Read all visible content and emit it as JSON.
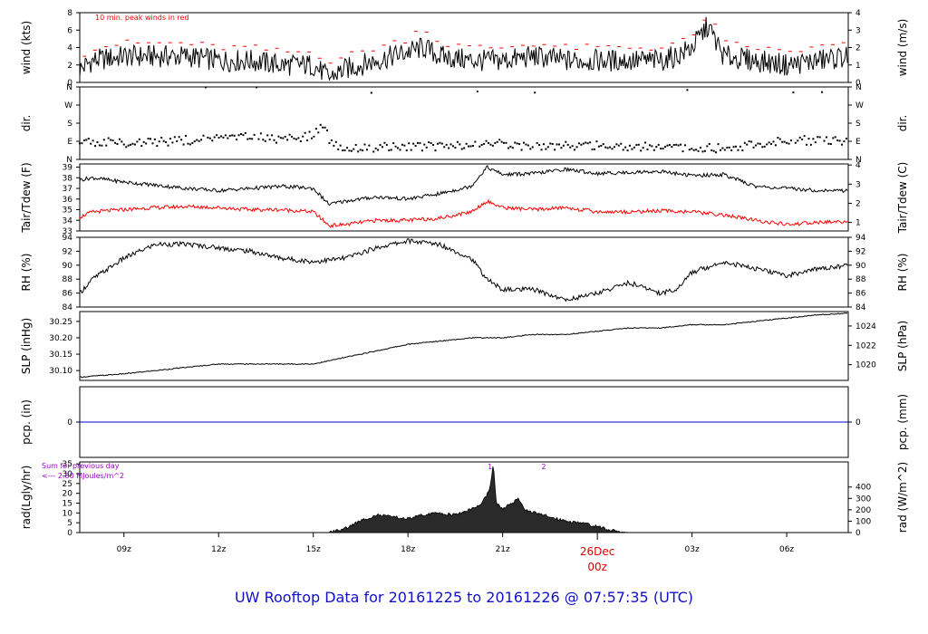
{
  "footer": {
    "title": "UW Rooftop Data for 20161225  to  20161226 @ 07:57:35  (UTC)"
  },
  "x_axis": {
    "ticks": [
      {
        "label": "09z",
        "hour": 9
      },
      {
        "label": "12z",
        "hour": 12
      },
      {
        "label": "15z",
        "hour": 15
      },
      {
        "label": "18z",
        "hour": 18
      },
      {
        "label": "21z",
        "hour": 21
      },
      {
        "label": "03z",
        "hour": 27
      },
      {
        "label": "06z",
        "hour": 30
      }
    ],
    "day_label": "26Dec",
    "day_sub": "00z",
    "day_hour": 24,
    "range_hours": [
      7.6,
      31.95
    ]
  },
  "panels": [
    {
      "id": "wind",
      "left_label": "wind (kts)",
      "right_label": "wind (m/s)",
      "left_ticks": [
        "0",
        "2",
        "4",
        "6",
        "8"
      ],
      "right_ticks": [
        "0",
        "1",
        "2",
        "3",
        "4"
      ],
      "note": "10 min. peak winds in red"
    },
    {
      "id": "dir",
      "left_label": "dir.",
      "right_label": "dir.",
      "left_ticks": [
        "N",
        "E",
        "S",
        "W",
        "N"
      ],
      "right_ticks": [
        "N",
        "E",
        "S",
        "W",
        "N"
      ]
    },
    {
      "id": "temp",
      "left_label": "Tair/Tdew (F)",
      "right_label": "Tair/Tdew (C)",
      "left_ticks": [
        "33",
        "34",
        "35",
        "36",
        "37",
        "38",
        "39"
      ],
      "right_ticks": [
        "1",
        "2",
        "3",
        "4"
      ]
    },
    {
      "id": "rh",
      "left_label": "RH (%)",
      "right_label": "RH (%)",
      "left_ticks": [
        "84",
        "86",
        "88",
        "90",
        "92",
        "94"
      ],
      "right_ticks": [
        "84",
        "86",
        "88",
        "90",
        "92",
        "94"
      ]
    },
    {
      "id": "slp",
      "left_label": "SLP (inHg)",
      "right_label": "SLP (hPa)",
      "left_ticks": [
        "30.10",
        "30.15",
        "30.20",
        "30.25"
      ],
      "right_ticks": [
        "1020",
        "1022",
        "1024"
      ]
    },
    {
      "id": "pcp",
      "left_label": "pcp. (in)",
      "right_label": "pcp. (mm)",
      "left_ticks": [
        "0"
      ],
      "right_ticks": [
        "0"
      ]
    },
    {
      "id": "rad",
      "left_label": "rad(Lgly/hr)",
      "right_label": "rad (W/m^2)",
      "left_ticks": [
        "0",
        "5",
        "10",
        "15",
        "20",
        "25",
        "30",
        "35"
      ],
      "right_ticks": [
        "0",
        "100",
        "200",
        "300",
        "400"
      ],
      "note1": "Sum for previous day",
      "note2": "<--- 2.80 MJoules/m^2",
      "markers": [
        "1",
        "2"
      ]
    }
  ],
  "colors": {
    "axis": "#000000",
    "series": "#000000",
    "peak": "#ff0000",
    "dewpoint": "#ff0000",
    "precip": "#0000cc",
    "note": "#9900cc",
    "day": "#dd0000"
  },
  "chart_data": [
    {
      "type": "line",
      "panel": "wind",
      "ylabel": "wind (kts)",
      "ylim": [
        0,
        8
      ],
      "x_hours": [
        7.6,
        8,
        9,
        10,
        11,
        12,
        13,
        14,
        15,
        15.5,
        16,
        17,
        18,
        18.5,
        19,
        20,
        21,
        22,
        23,
        24,
        25,
        26,
        26.5,
        27,
        27.5,
        28,
        29,
        30,
        31,
        31.95
      ],
      "series": [
        {
          "name": "wind",
          "values": [
            1.5,
            2.5,
            3,
            3,
            3,
            2.5,
            2.5,
            2,
            2,
            0.5,
            1.5,
            2.5,
            3.5,
            4,
            3,
            2.5,
            2.5,
            3,
            2.5,
            2.5,
            2.5,
            2.5,
            3,
            4,
            6.5,
            3,
            2.5,
            2,
            2.5,
            3
          ]
        },
        {
          "name": "10 min. peak winds",
          "values": [
            3,
            4,
            4.5,
            4.5,
            4.5,
            4,
            4,
            3.5,
            3.5,
            2.5,
            3,
            4,
            5,
            6.5,
            4.5,
            4,
            4,
            4.5,
            4,
            4,
            4,
            4,
            4.5,
            5,
            8,
            4.5,
            4,
            3.5,
            4,
            4.5
          ]
        }
      ]
    },
    {
      "type": "scatter",
      "panel": "dir",
      "ylabel": "dir.",
      "categories_y": [
        "N",
        "E",
        "S",
        "W",
        "N"
      ],
      "x_hours": [
        7.6,
        9,
        11,
        13,
        14,
        15,
        15.3,
        15.6,
        16,
        18,
        20,
        21,
        22,
        24,
        26,
        28,
        30,
        31.95
      ],
      "series": [
        {
          "name": "direction (deg)",
          "values": [
            90,
            80,
            95,
            110,
            100,
            120,
            175,
            70,
            60,
            60,
            70,
            80,
            60,
            70,
            60,
            55,
            95,
            95
          ]
        }
      ]
    },
    {
      "type": "line",
      "panel": "temp",
      "ylabel": "Tair/Tdew (F)",
      "ylim": [
        33,
        39.3
      ],
      "x_hours": [
        7.6,
        8,
        9,
        10,
        11,
        12,
        13,
        14,
        15,
        15.5,
        16,
        17,
        18,
        19,
        20,
        20.5,
        21,
        22,
        23,
        24,
        25,
        26,
        27,
        28,
        29,
        30,
        31,
        31.95
      ],
      "series": [
        {
          "name": "Tair",
          "values": [
            37.8,
            38.0,
            37.6,
            37.3,
            37.0,
            36.8,
            37.0,
            37.2,
            37.0,
            35.5,
            35.8,
            36.2,
            36.0,
            36.5,
            37.2,
            39.0,
            38.3,
            38.4,
            38.8,
            38.4,
            38.5,
            38.6,
            38.2,
            38.3,
            37.2,
            37.0,
            36.8,
            36.8
          ]
        },
        {
          "name": "Tdew",
          "values": [
            34.3,
            34.8,
            35.0,
            35.2,
            35.3,
            35.2,
            35.0,
            35.0,
            34.8,
            33.5,
            33.6,
            34.0,
            34.0,
            34.2,
            34.8,
            35.8,
            35.2,
            35.0,
            35.2,
            34.8,
            34.8,
            34.9,
            34.8,
            34.5,
            34.0,
            33.6,
            33.8,
            33.9
          ]
        }
      ]
    },
    {
      "type": "line",
      "panel": "rh",
      "ylabel": "RH (%)",
      "ylim": [
        84,
        94
      ],
      "x_hours": [
        7.6,
        8,
        9,
        10,
        11,
        12,
        13,
        14,
        15,
        16,
        17,
        18,
        19,
        20,
        20.5,
        21,
        22,
        23,
        24,
        25,
        26,
        26.5,
        27,
        28,
        29,
        30,
        31,
        31.95
      ],
      "series": [
        {
          "name": "RH",
          "values": [
            86,
            88,
            91,
            93,
            93,
            92.5,
            92,
            91,
            90.5,
            91,
            92.5,
            93.5,
            93,
            91,
            88,
            86.5,
            86.5,
            85,
            86,
            87.5,
            86,
            86.5,
            89,
            90.5,
            89.5,
            88.5,
            89.5,
            90
          ]
        }
      ]
    },
    {
      "type": "line",
      "panel": "slp",
      "ylabel": "SLP (inHg)",
      "ylim": [
        30.07,
        30.28
      ],
      "x_hours": [
        7.6,
        9,
        10,
        11,
        12,
        13,
        14,
        15,
        16,
        17,
        18,
        19,
        20,
        21,
        22,
        23,
        24,
        25,
        26,
        27,
        28,
        29,
        30,
        31,
        31.95
      ],
      "series": [
        {
          "name": "SLP",
          "values": [
            30.08,
            30.09,
            30.1,
            30.11,
            30.12,
            30.12,
            30.12,
            30.12,
            30.14,
            30.16,
            30.18,
            30.19,
            30.2,
            30.2,
            30.21,
            30.21,
            30.22,
            30.23,
            30.23,
            30.24,
            30.24,
            30.25,
            30.26,
            30.27,
            30.275
          ]
        }
      ]
    },
    {
      "type": "line",
      "panel": "pcp",
      "ylabel": "pcp. (in)",
      "ylim": [
        -1,
        1
      ],
      "x_hours": [
        7.6,
        31.95
      ],
      "series": [
        {
          "name": "precipitation",
          "values": [
            0,
            0
          ]
        }
      ]
    },
    {
      "type": "area",
      "panel": "rad",
      "ylabel": "rad(Lgly/hr)",
      "ylim": [
        0,
        36
      ],
      "x_hours": [
        7.6,
        15.5,
        16,
        16.5,
        17,
        17.5,
        18,
        18.5,
        19,
        19.5,
        20,
        20.3,
        20.6,
        20.7,
        20.8,
        21,
        21.2,
        21.5,
        21.7,
        22,
        22.5,
        23,
        23.5,
        24,
        24.5,
        25,
        31.95
      ],
      "series": [
        {
          "name": "solar radiation",
          "values": [
            0,
            0,
            2,
            6,
            9,
            8,
            7,
            9,
            10,
            9,
            12,
            14,
            22,
            35,
            15,
            12,
            14,
            17,
            12,
            10,
            8,
            6,
            5,
            3,
            1,
            0,
            0
          ]
        }
      ]
    }
  ]
}
